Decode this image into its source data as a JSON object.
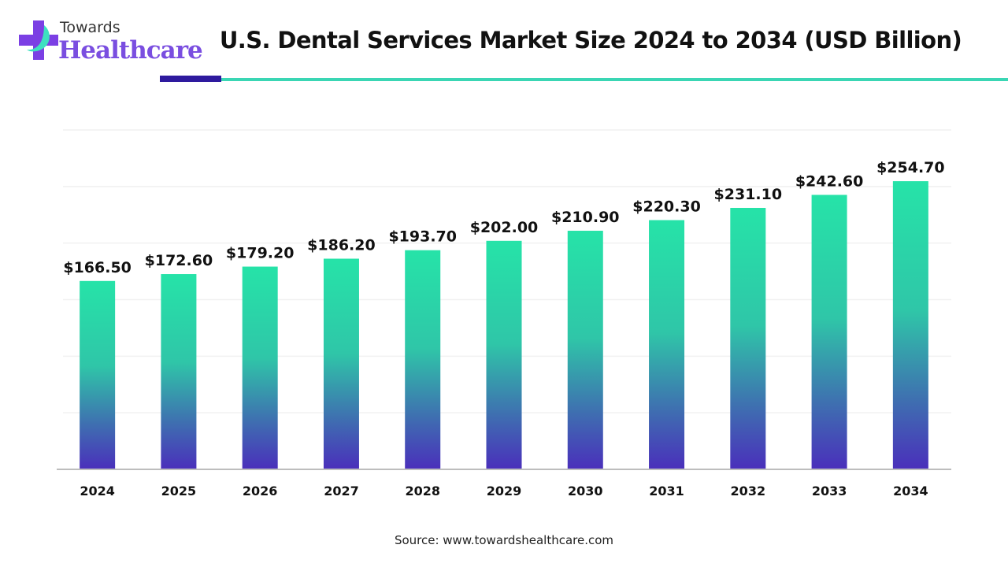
{
  "logo": {
    "line1": "Towards",
    "line2": "Healthcare"
  },
  "header": {
    "title": "U.S. Dental Services Market Size 2024 to 2034 (USD Billion)"
  },
  "source": "Source: www.towardshealthcare.com",
  "colors": {
    "bar_top": "#26e3a8",
    "bar_bottom": "#4a2fbb",
    "accent_dark": "#2e1a9e",
    "accent_teal": "#3ad6b4"
  },
  "chart_data": {
    "type": "bar",
    "title": "U.S. Dental Services Market Size 2024 to 2034 (USD Billion)",
    "xlabel": "",
    "ylabel": "",
    "categories": [
      "2024",
      "2025",
      "2026",
      "2027",
      "2028",
      "2029",
      "2030",
      "2031",
      "2032",
      "2033",
      "2034"
    ],
    "values": [
      166.5,
      172.6,
      179.2,
      186.2,
      193.7,
      202.0,
      210.9,
      220.3,
      231.1,
      242.6,
      254.7
    ],
    "data_labels": [
      "$166.50",
      "$172.60",
      "$179.20",
      "$186.20",
      "$193.70",
      "$202.00",
      "$210.90",
      "$220.30",
      "$231.10",
      "$242.60",
      "$254.70"
    ],
    "ylim": [
      0,
      300
    ],
    "grid": true,
    "y_axis_visible": false
  }
}
